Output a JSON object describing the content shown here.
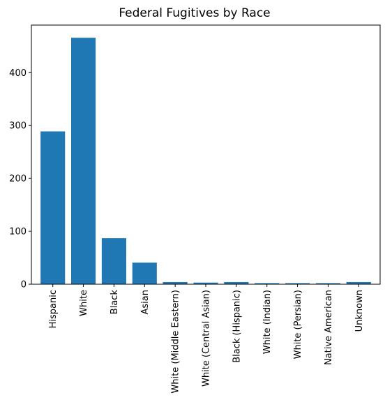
{
  "chart_data": {
    "type": "bar",
    "title": "Federal Fugitives by Race",
    "xlabel": "",
    "ylabel": "",
    "categories": [
      "Hispanic",
      "White",
      "Black",
      "Asian",
      "White (Middle Eastern)",
      "White (Central Asian)",
      "Black (Hispanic)",
      "White (Indian)",
      "White (Persian)",
      "Native American",
      "Unknown"
    ],
    "values": [
      289,
      466,
      87,
      41,
      4,
      3,
      4,
      2,
      2,
      2,
      4
    ],
    "ylim": [
      0,
      490
    ],
    "yticks": [
      0,
      100,
      200,
      300,
      400
    ],
    "grid": false,
    "legend": "none",
    "bar_color": "#1f77b4"
  }
}
